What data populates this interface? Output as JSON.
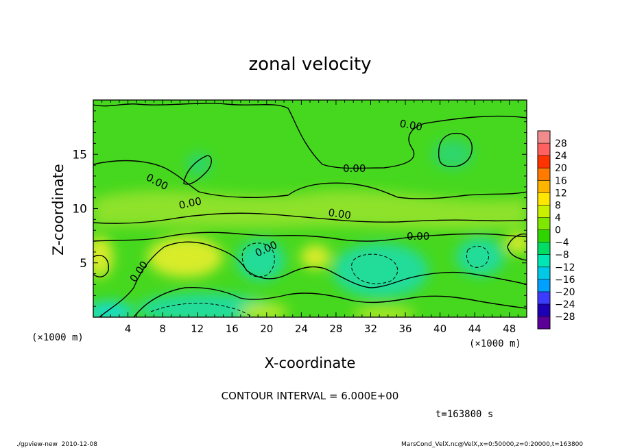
{
  "chart_data": {
    "type": "heatmap",
    "title": "zonal velocity",
    "xlabel": "X-coordinate",
    "ylabel": "Z-coordinate",
    "x_unit_left": "(×1000 m)",
    "x_unit_right": "(×1000 m)",
    "xlim": [
      0,
      50
    ],
    "ylim": [
      0,
      20
    ],
    "x_ticks": [
      4,
      8,
      12,
      16,
      20,
      24,
      28,
      32,
      36,
      40,
      44,
      48
    ],
    "y_ticks": [
      5,
      10,
      15
    ],
    "colorbar_levels": [
      28,
      24,
      20,
      16,
      12,
      8,
      4,
      0,
      -4,
      -8,
      -12,
      -16,
      -20,
      -24,
      -28
    ],
    "colorbar_colors": [
      "#f08c8c",
      "#ff6060",
      "#ff3300",
      "#ff7a00",
      "#ffb400",
      "#ffe600",
      "#c8f000",
      "#7fe600",
      "#2fd500",
      "#00dc64",
      "#00e6b4",
      "#00c8e6",
      "#00a0ff",
      "#3c3cff",
      "#1e00b4",
      "#5a0096"
    ],
    "contour_labels": [
      "0.00",
      "0.00",
      "0.00",
      "0.00",
      "0.00",
      "0.00",
      "0.00",
      "0.00"
    ],
    "contour_interval": "CONTOUR INTERVAL = 6.000E+00",
    "time_label": "t=163800 s"
  },
  "footer": {
    "left": "./gpview-new  2010-12-08",
    "right": "MarsCond_VelX.nc@VelX,x=0:50000,z=0:20000,t=163800"
  }
}
